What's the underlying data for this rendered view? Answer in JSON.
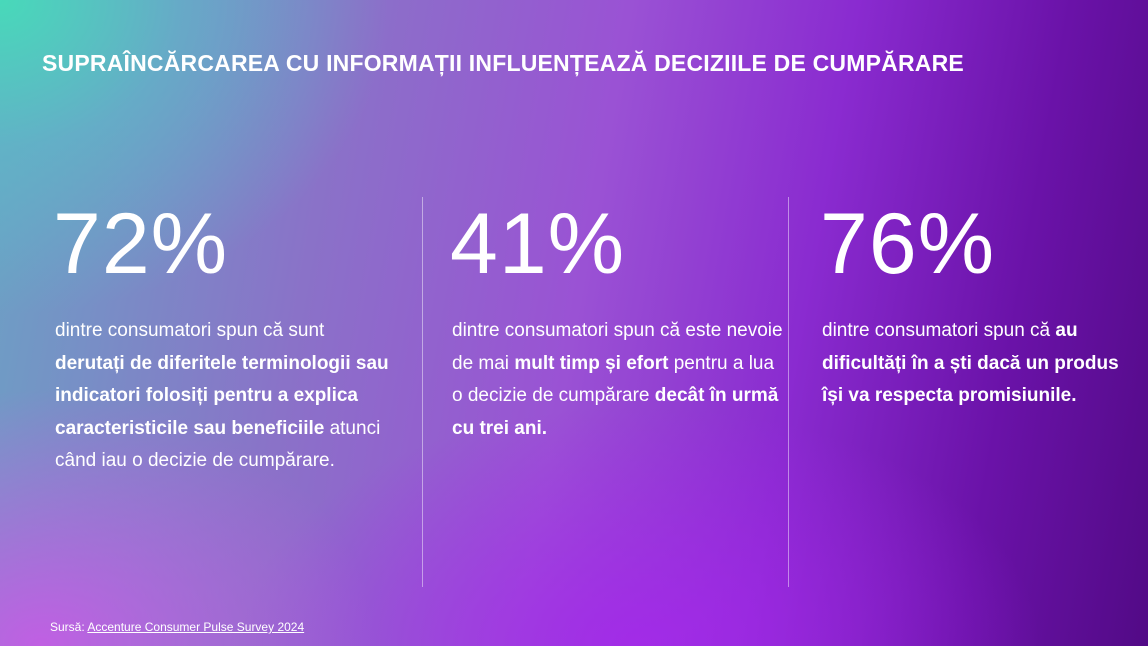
{
  "title": "SUPRAÎNCĂRCAREA CU INFORMAȚII INFLUENȚEAZĂ DECIZIILE DE CUMPĂRARE",
  "stats": [
    {
      "value": "72%",
      "text_1": "dintre consumatori spun că sunt ",
      "bold_1": "derutați de diferitele terminologii sau indicatori folosiți pentru a explica caracteristicile sau beneficiile",
      "text_2": " atunci când iau o decizie de cumpărare.",
      "bold_2": "",
      "text_3": ""
    },
    {
      "value": "41%",
      "text_1": "dintre consumatori spun că este nevoie de mai ",
      "bold_1": "mult timp și efort",
      "text_2": " pentru a lua o decizie de cumpărare ",
      "bold_2": "decât în urmă cu trei ani.",
      "text_3": ""
    },
    {
      "value": "76%",
      "text_1": "dintre consumatori spun că ",
      "bold_1": "au dificultăți în a ști dacă un produs își va respecta promisiunile.",
      "text_2": "",
      "bold_2": "",
      "text_3": ""
    }
  ],
  "source": {
    "label": "Sursă: ",
    "link_text": "Accenture Consumer Pulse Survey 2024"
  },
  "colors": {
    "text": "#ffffff",
    "gradient_start": "#46dcb9",
    "gradient_end": "#520a86"
  }
}
